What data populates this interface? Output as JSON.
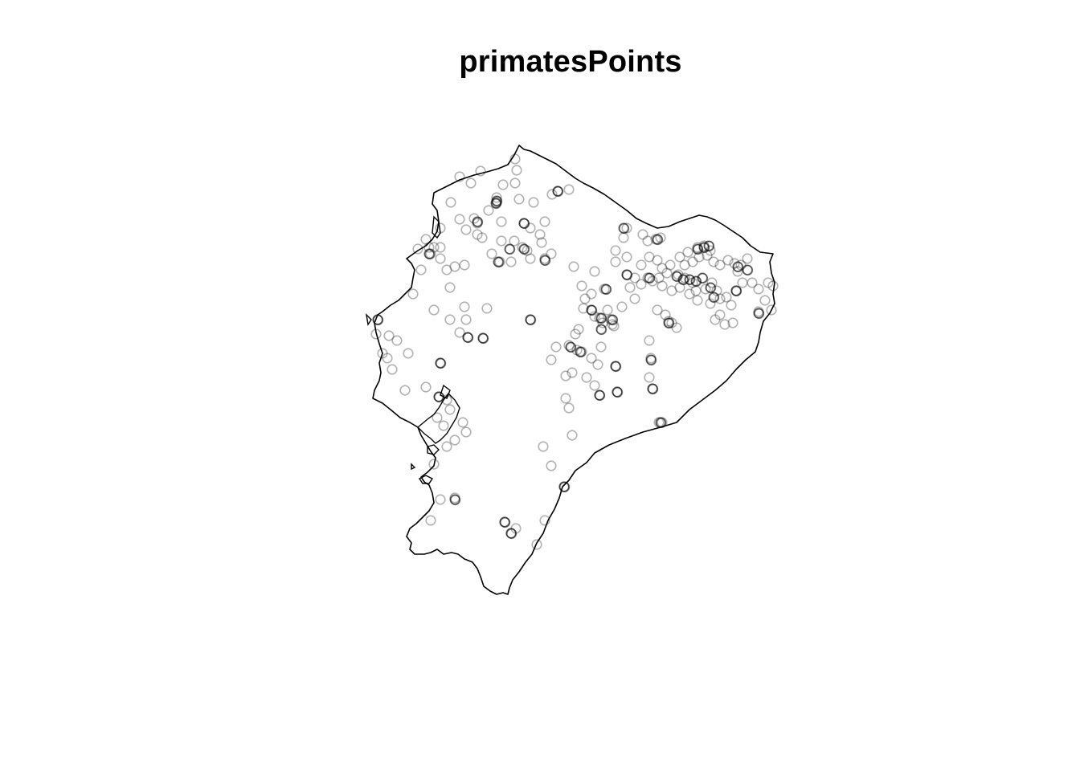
{
  "plot": {
    "title": "primatesPoints"
  },
  "style": {
    "outline_color": "#000000",
    "point_color": "#000000",
    "point_opacity": 0.3,
    "point_shape": "open-circle",
    "background": "#ffffff"
  }
}
